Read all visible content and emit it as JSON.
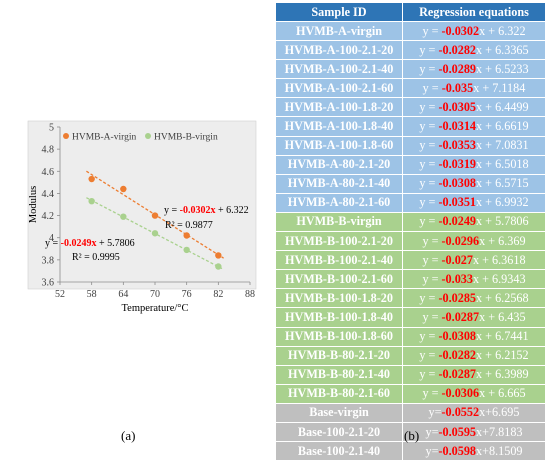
{
  "chart_data": {
    "type": "scatter",
    "xlabel": "Temperature/°C",
    "ylabel": "Modulus",
    "xlim": [
      52,
      88
    ],
    "ylim": [
      3.6,
      5
    ],
    "xticks": [
      52,
      58,
      64,
      70,
      76,
      82,
      88
    ],
    "yticks": [
      3.6,
      3.8,
      4,
      4.2,
      4.4,
      4.6,
      4.8,
      5
    ],
    "background": "#ededed",
    "grid": false,
    "legend_position": "top",
    "series": [
      {
        "name": "HVMB-A-virgin",
        "color": "#ed7d31",
        "x": [
          58,
          64,
          70,
          76,
          82
        ],
        "y": [
          4.53,
          4.44,
          4.2,
          4.02,
          3.84
        ],
        "trendline": {
          "slope": -0.0302,
          "intercept": 6.322
        },
        "equation": {
          "prefix": "y = ",
          "coef": "-0.0302x",
          "suffix": " + 6.322"
        },
        "r2": "R² = 0.9877"
      },
      {
        "name": "HVMB-B-virgin",
        "color": "#a9d18e",
        "x": [
          58,
          64,
          70,
          76,
          82
        ],
        "y": [
          4.33,
          4.19,
          4.04,
          3.89,
          3.74
        ],
        "trendline": {
          "slope": -0.0249,
          "intercept": 5.7806
        },
        "equation": {
          "prefix": "y = ",
          "coef": "-0.0249x",
          "suffix": " + 5.7806"
        },
        "r2": "R² = 0.9995"
      }
    ]
  },
  "caption_a": "(a)",
  "caption_b": "(b)",
  "table": {
    "headers": [
      "Sample ID",
      "Regression equations"
    ],
    "rows": [
      {
        "id": "HVMB-A-virgin",
        "pre": "y = ",
        "coef": "-0.0302",
        "post": "x + 6.322",
        "group": "blue"
      },
      {
        "id": "HVMB-A-100-2.1-20",
        "pre": "y = ",
        "coef": "-0.0282",
        "post": "x + 6.3365",
        "group": "blue"
      },
      {
        "id": "HVMB-A-100-2.1-40",
        "pre": "y = ",
        "coef": "-0.0289",
        "post": "x + 6.5233",
        "group": "blue"
      },
      {
        "id": "HVMB-A-100-2.1-60",
        "pre": "y = ",
        "coef": "-0.035",
        "post": "x + 7.1184",
        "group": "blue"
      },
      {
        "id": "HVMB-A-100-1.8-20",
        "pre": "y = ",
        "coef": "-0.0305",
        "post": "x + 6.4499",
        "group": "blue"
      },
      {
        "id": "HVMB-A-100-1.8-40",
        "pre": "y = ",
        "coef": "-0.0314",
        "post": "x + 6.6619",
        "group": "blue"
      },
      {
        "id": "HVMB-A-100-1.8-60",
        "pre": "y = ",
        "coef": "-0.0353",
        "post": "x + 7.0831",
        "group": "blue"
      },
      {
        "id": "HVMB-A-80-2.1-20",
        "pre": "y = ",
        "coef": "-0.0319",
        "post": "x + 6.5018",
        "group": "blue"
      },
      {
        "id": "HVMB-A-80-2.1-40",
        "pre": "y = ",
        "coef": "-0.0308",
        "post": "x + 6.5715",
        "group": "blue"
      },
      {
        "id": "HVMB-A-80-2.1-60",
        "pre": "y = ",
        "coef": "-0.0351",
        "post": "x + 6.9932",
        "group": "blue"
      },
      {
        "id": "HVMB-B-virgin",
        "pre": "y = ",
        "coef": "-0.0249",
        "post": "x + 5.7806",
        "group": "green"
      },
      {
        "id": "HVMB-B-100-2.1-20",
        "pre": "y = ",
        "coef": "-0.0296",
        "post": "x + 6.369",
        "group": "green"
      },
      {
        "id": "HVMB-B-100-2.1-40",
        "pre": "y = ",
        "coef": "-0.027",
        "post": "x + 6.3618",
        "group": "green"
      },
      {
        "id": "HVMB-B-100-2.1-60",
        "pre": "y = ",
        "coef": "-0.033",
        "post": "x + 6.9343",
        "group": "green"
      },
      {
        "id": "HVMB-B-100-1.8-20",
        "pre": "y = ",
        "coef": "-0.0285",
        "post": "x + 6.2568",
        "group": "green"
      },
      {
        "id": "HVMB-B-100-1.8-40",
        "pre": "y = ",
        "coef": "-0.0287",
        "post": "x + 6.435",
        "group": "green"
      },
      {
        "id": "HVMB-B-100-1.8-60",
        "pre": "y = ",
        "coef": "-0.0308",
        "post": "x + 6.7441",
        "group": "green"
      },
      {
        "id": "HVMB-B-80-2.1-20",
        "pre": "y = ",
        "coef": "-0.0282",
        "post": "x + 6.2152",
        "group": "green"
      },
      {
        "id": "HVMB-B-80-2.1-40",
        "pre": "y = ",
        "coef": "-0.0287",
        "post": "x + 6.3989",
        "group": "green"
      },
      {
        "id": "HVMB-B-80-2.1-60",
        "pre": "y = ",
        "coef": "-0.0306",
        "post": "x + 6.665",
        "group": "green"
      },
      {
        "id": "Base-virgin",
        "pre": "y=",
        "coef": "-0.0552",
        "post": "x+6.695",
        "group": "gray"
      },
      {
        "id": "Base-100-2.1-20",
        "pre": "y=",
        "coef": "-0.0595",
        "post": "x+7.8183",
        "group": "gray"
      },
      {
        "id": "Base-100-2.1-40",
        "pre": "y=",
        "coef": "-0.0598",
        "post": "x+8.1509",
        "group": "gray"
      }
    ]
  }
}
